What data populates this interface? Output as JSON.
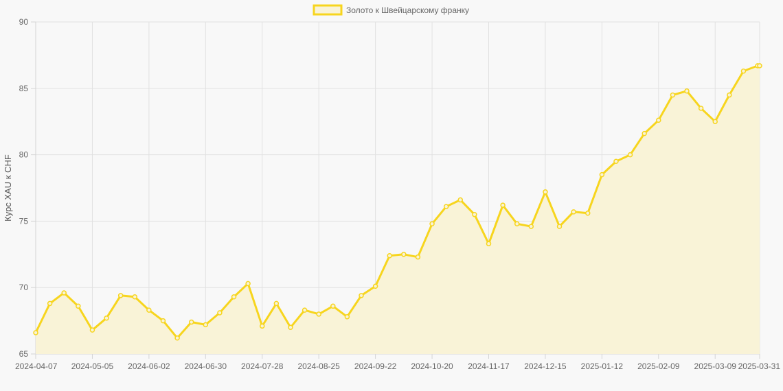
{
  "chart_data": {
    "type": "line",
    "series": [
      {
        "name": "Золото к Швейцарскому франку",
        "x": [
          "2024-04-07",
          "2024-04-14",
          "2024-04-21",
          "2024-04-28",
          "2024-05-05",
          "2024-05-12",
          "2024-05-19",
          "2024-05-26",
          "2024-06-02",
          "2024-06-09",
          "2024-06-16",
          "2024-06-23",
          "2024-06-30",
          "2024-07-07",
          "2024-07-14",
          "2024-07-21",
          "2024-07-28",
          "2024-08-04",
          "2024-08-11",
          "2024-08-18",
          "2024-08-25",
          "2024-09-01",
          "2024-09-08",
          "2024-09-15",
          "2024-09-22",
          "2024-09-29",
          "2024-10-06",
          "2024-10-13",
          "2024-10-20",
          "2024-10-27",
          "2024-11-03",
          "2024-11-10",
          "2024-11-17",
          "2024-11-24",
          "2024-12-01",
          "2024-12-08",
          "2024-12-15",
          "2024-12-22",
          "2024-12-29",
          "2025-01-05",
          "2025-01-12",
          "2025-01-19",
          "2025-01-26",
          "2025-02-02",
          "2025-02-09",
          "2025-02-16",
          "2025-02-23",
          "2025-03-02",
          "2025-03-09",
          "2025-03-16",
          "2025-03-23",
          "2025-03-30",
          "2025-03-31"
        ],
        "values": [
          66.6,
          68.8,
          69.6,
          68.6,
          66.8,
          67.7,
          69.4,
          69.3,
          68.3,
          67.5,
          66.2,
          67.4,
          67.2,
          68.1,
          69.3,
          70.3,
          67.1,
          68.8,
          67.0,
          68.3,
          68.0,
          68.6,
          67.8,
          69.4,
          70.1,
          72.4,
          72.5,
          72.3,
          74.8,
          76.1,
          76.6,
          75.5,
          73.3,
          76.2,
          74.8,
          74.6,
          77.2,
          74.6,
          75.7,
          75.6,
          78.5,
          79.5,
          80.0,
          81.6,
          82.6,
          84.5,
          84.8,
          83.5,
          82.5,
          84.5,
          86.3,
          86.7,
          86.7
        ]
      }
    ],
    "x_tick_labels": [
      "2024-04-07",
      "2024-05-05",
      "2024-06-02",
      "2024-06-30",
      "2024-07-28",
      "2024-08-25",
      "2024-09-22",
      "2024-10-20",
      "2024-11-17",
      "2024-12-15",
      "2025-01-12",
      "2025-02-09",
      "2025-03-09",
      "2025-03-31"
    ],
    "y_ticks": [
      "65",
      "70",
      "75",
      "80",
      "85",
      "90"
    ],
    "ylim": [
      65,
      90
    ],
    "xlabel": "",
    "ylabel": "Курс XAU к CHF",
    "legend": "top-center",
    "grid": true,
    "line_color": "#f7d51e",
    "fill_color": "#f9f3d7"
  }
}
